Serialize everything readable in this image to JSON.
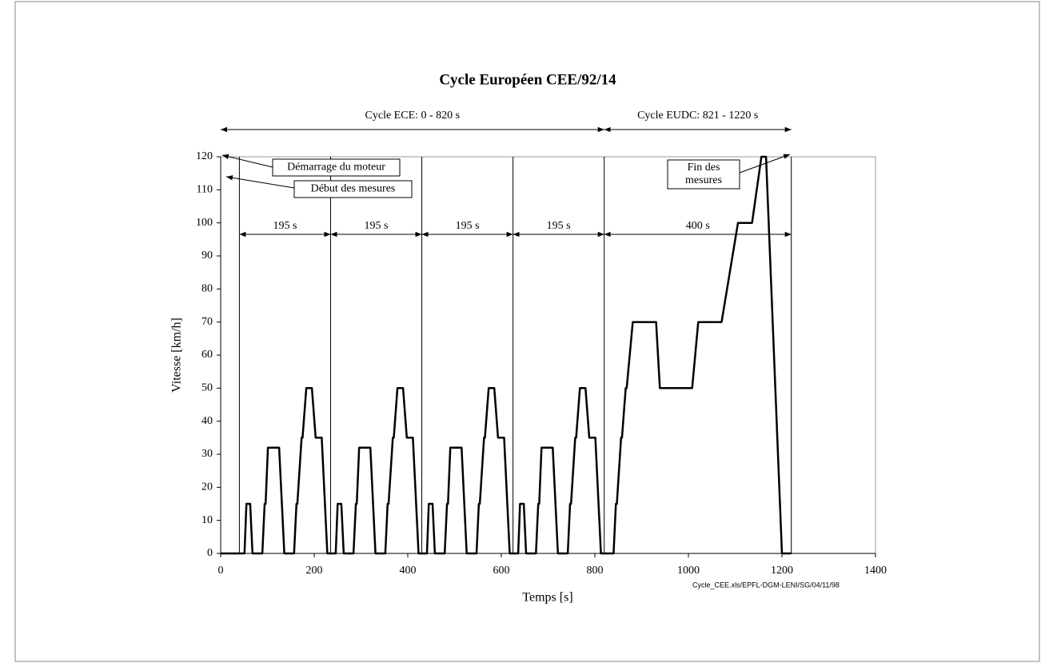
{
  "chart_data": {
    "type": "line",
    "title": "Cycle Européen CEE/92/14",
    "xlabel": "Temps [s]",
    "ylabel": "Vitesse [km/h]",
    "footer": "Cycle_CEE.xls/EPFL-DGM-LENI/SG/04/11/98",
    "color": "#000000",
    "xlim": [
      0,
      1400
    ],
    "ylim": [
      0,
      120
    ],
    "xticks": [
      0,
      200,
      400,
      600,
      800,
      1000,
      1200,
      1400
    ],
    "yticks": [
      0,
      10,
      20,
      30,
      40,
      50,
      60,
      70,
      80,
      90,
      100,
      110,
      120
    ],
    "grid": false,
    "x": [
      0,
      40,
      51,
      55,
      63,
      68,
      89,
      94,
      96,
      101,
      125,
      136,
      157,
      162,
      164,
      173,
      175,
      183,
      195,
      203,
      216,
      228,
      235,
      246,
      250,
      258,
      263,
      284,
      289,
      291,
      296,
      320,
      331,
      352,
      357,
      359,
      368,
      370,
      378,
      390,
      398,
      411,
      423,
      430,
      441,
      445,
      453,
      458,
      479,
      484,
      486,
      491,
      515,
      526,
      547,
      552,
      554,
      563,
      565,
      573,
      585,
      593,
      606,
      618,
      625,
      636,
      640,
      648,
      653,
      674,
      679,
      681,
      686,
      710,
      721,
      742,
      747,
      749,
      758,
      760,
      768,
      780,
      788,
      801,
      813,
      820,
      840,
      845,
      847,
      856,
      858,
      866,
      868,
      881,
      931,
      939,
      1008,
      1021,
      1071,
      1106,
      1136,
      1156,
      1166,
      1200,
      1220
    ],
    "values": [
      0,
      0,
      0,
      15,
      15,
      0,
      0,
      15,
      15,
      32,
      32,
      0,
      0,
      15,
      15,
      35,
      35,
      50,
      50,
      35,
      35,
      0,
      0,
      0,
      15,
      15,
      0,
      0,
      15,
      15,
      32,
      32,
      0,
      0,
      15,
      15,
      35,
      35,
      50,
      50,
      35,
      35,
      0,
      0,
      0,
      15,
      15,
      0,
      0,
      15,
      15,
      32,
      32,
      0,
      0,
      15,
      15,
      35,
      35,
      50,
      50,
      35,
      35,
      0,
      0,
      0,
      15,
      15,
      0,
      0,
      15,
      15,
      32,
      32,
      0,
      0,
      15,
      15,
      35,
      35,
      50,
      50,
      35,
      35,
      0,
      0,
      0,
      15,
      15,
      35,
      35,
      50,
      50,
      70,
      70,
      50,
      50,
      70,
      70,
      100,
      100,
      120,
      120,
      0,
      0
    ],
    "markers": [
      40,
      235,
      430,
      625,
      820,
      1220
    ],
    "top_spans": [
      {
        "from": 0,
        "to": 820,
        "label": "Cycle ECE: 0 - 820 s"
      },
      {
        "from": 820,
        "to": 1220,
        "label": "Cycle EUDC: 821 - 1220 s"
      }
    ],
    "spans": [
      {
        "from": 40,
        "to": 235,
        "label": "195 s"
      },
      {
        "from": 235,
        "to": 430,
        "label": "195 s"
      },
      {
        "from": 430,
        "to": 625,
        "label": "195 s"
      },
      {
        "from": 625,
        "to": 820,
        "label": "195 s"
      },
      {
        "from": 820,
        "to": 1220,
        "label": "400 s"
      }
    ],
    "annotations": [
      {
        "lines": [
          "Démarrage du moteur"
        ]
      },
      {
        "lines": [
          "Début des mesures"
        ]
      },
      {
        "lines": [
          "Fin des",
          "mesures"
        ]
      }
    ]
  }
}
